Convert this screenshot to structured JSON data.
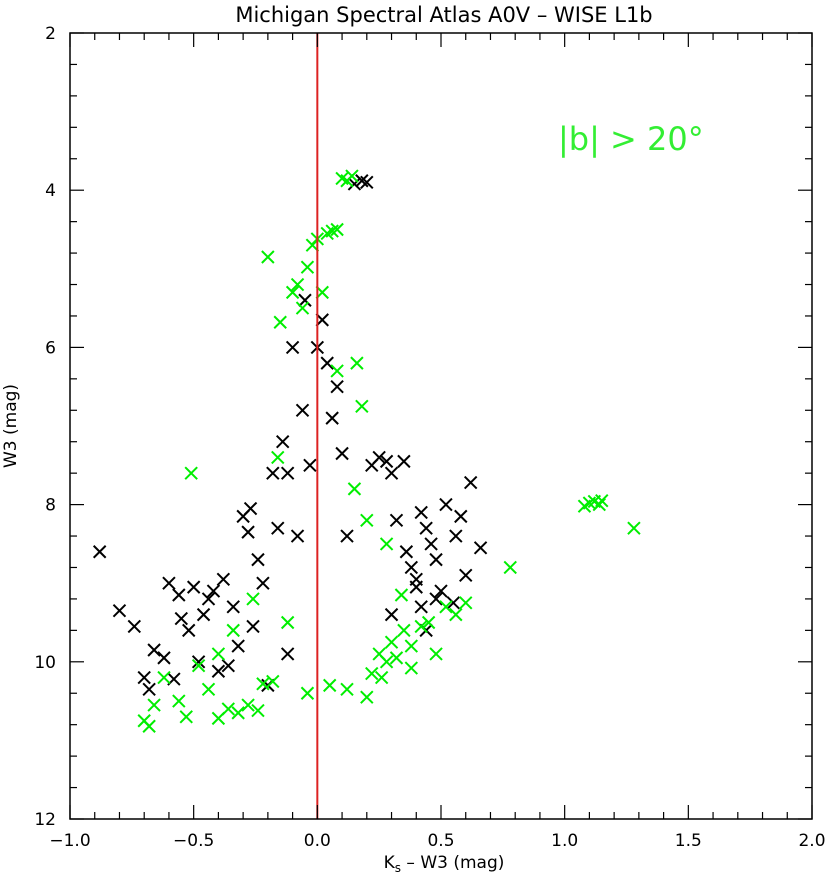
{
  "chart_data": {
    "type": "scatter",
    "title": "Michigan Spectral Atlas A0V – WISE L1b",
    "xlabel_main": "K",
    "xlabel_sub": "s",
    "xlabel_rest": " – W3 (mag)",
    "ylabel": "W3 (mag)",
    "xlim": [
      -1.0,
      2.0
    ],
    "ylim": [
      12,
      2
    ],
    "y_inverted": true,
    "x_ticks": [
      -1.0,
      -0.5,
      0.0,
      0.5,
      1.0,
      1.5,
      2.0
    ],
    "x_tick_labels": [
      "−1.0",
      "−0.5",
      "0.0",
      "0.5",
      "1.0",
      "1.5",
      "2.0"
    ],
    "y_ticks": [
      2,
      4,
      6,
      8,
      10,
      12
    ],
    "y_tick_labels": [
      "2",
      "4",
      "6",
      "8",
      "10",
      "12"
    ],
    "annotation": "|b| > 20°",
    "reference_line": {
      "x": 0.0,
      "color": "#dd2222"
    },
    "marker": "x",
    "series": [
      {
        "color": "#000000",
        "points": [
          [
            -0.88,
            8.6
          ],
          [
            -0.8,
            9.35
          ],
          [
            -0.74,
            9.55
          ],
          [
            -0.7,
            10.2
          ],
          [
            -0.68,
            10.35
          ],
          [
            -0.66,
            9.85
          ],
          [
            -0.62,
            9.95
          ],
          [
            -0.58,
            10.22
          ],
          [
            -0.55,
            9.45
          ],
          [
            -0.52,
            9.6
          ],
          [
            -0.5,
            9.05
          ],
          [
            -0.48,
            10.0
          ],
          [
            -0.44,
            9.2
          ],
          [
            -0.42,
            9.1
          ],
          [
            -0.4,
            10.12
          ],
          [
            -0.38,
            8.95
          ],
          [
            -0.36,
            10.05
          ],
          [
            -0.34,
            9.3
          ],
          [
            -0.3,
            8.15
          ],
          [
            -0.27,
            8.05
          ],
          [
            -0.24,
            8.7
          ],
          [
            -0.22,
            9.0
          ],
          [
            -0.2,
            10.3
          ],
          [
            -0.18,
            7.6
          ],
          [
            -0.16,
            8.3
          ],
          [
            -0.14,
            7.2
          ],
          [
            -0.12,
            7.6
          ],
          [
            -0.1,
            6.0
          ],
          [
            -0.08,
            8.4
          ],
          [
            -0.05,
            5.4
          ],
          [
            -0.03,
            7.5
          ],
          [
            0.0,
            6.0
          ],
          [
            0.02,
            5.65
          ],
          [
            0.04,
            6.2
          ],
          [
            0.06,
            6.9
          ],
          [
            0.08,
            6.5
          ],
          [
            0.1,
            7.35
          ],
          [
            0.12,
            8.4
          ],
          [
            0.15,
            3.92
          ],
          [
            0.18,
            3.88
          ],
          [
            0.2,
            3.9
          ],
          [
            0.22,
            7.5
          ],
          [
            0.25,
            7.4
          ],
          [
            0.28,
            7.45
          ],
          [
            0.3,
            7.6
          ],
          [
            0.32,
            8.2
          ],
          [
            0.35,
            7.45
          ],
          [
            0.38,
            8.8
          ],
          [
            0.4,
            9.05
          ],
          [
            0.42,
            9.3
          ],
          [
            0.44,
            8.3
          ],
          [
            0.46,
            8.5
          ],
          [
            0.48,
            8.7
          ],
          [
            0.5,
            9.1
          ],
          [
            0.52,
            8.0
          ],
          [
            0.55,
            9.25
          ],
          [
            0.58,
            8.15
          ],
          [
            0.6,
            8.9
          ],
          [
            0.62,
            7.72
          ],
          [
            0.66,
            8.55
          ],
          [
            -0.6,
            9.0
          ],
          [
            -0.56,
            9.15
          ],
          [
            -0.46,
            9.4
          ],
          [
            -0.32,
            9.8
          ],
          [
            -0.26,
            9.55
          ],
          [
            0.36,
            8.6
          ],
          [
            0.4,
            8.95
          ],
          [
            0.44,
            9.6
          ],
          [
            0.48,
            9.2
          ],
          [
            0.3,
            9.4
          ],
          [
            0.56,
            8.4
          ],
          [
            0.42,
            8.1
          ],
          [
            -0.12,
            9.9
          ],
          [
            -0.28,
            8.35
          ],
          [
            -0.06,
            6.8
          ]
        ]
      },
      {
        "color": "#00ee00",
        "points": [
          [
            -0.7,
            10.75
          ],
          [
            -0.68,
            10.82
          ],
          [
            -0.66,
            10.55
          ],
          [
            -0.62,
            10.2
          ],
          [
            -0.56,
            10.5
          ],
          [
            -0.53,
            10.7
          ],
          [
            -0.51,
            7.6
          ],
          [
            -0.48,
            10.05
          ],
          [
            -0.44,
            10.35
          ],
          [
            -0.4,
            10.72
          ],
          [
            -0.36,
            10.6
          ],
          [
            -0.32,
            10.65
          ],
          [
            -0.28,
            10.55
          ],
          [
            -0.24,
            10.62
          ],
          [
            -0.2,
            4.85
          ],
          [
            -0.18,
            10.25
          ],
          [
            -0.15,
            5.68
          ],
          [
            -0.12,
            9.5
          ],
          [
            -0.1,
            5.3
          ],
          [
            -0.08,
            5.2
          ],
          [
            -0.06,
            5.5
          ],
          [
            -0.04,
            4.98
          ],
          [
            -0.02,
            4.7
          ],
          [
            0.0,
            4.62
          ],
          [
            0.02,
            5.3
          ],
          [
            0.04,
            4.55
          ],
          [
            0.06,
            4.52
          ],
          [
            0.08,
            4.5
          ],
          [
            0.1,
            3.85
          ],
          [
            0.12,
            3.88
          ],
          [
            0.14,
            3.82
          ],
          [
            0.16,
            6.2
          ],
          [
            0.18,
            6.75
          ],
          [
            0.2,
            10.45
          ],
          [
            0.22,
            10.15
          ],
          [
            0.25,
            9.9
          ],
          [
            0.28,
            10.0
          ],
          [
            0.3,
            9.75
          ],
          [
            0.32,
            9.95
          ],
          [
            0.35,
            9.6
          ],
          [
            0.38,
            9.8
          ],
          [
            0.42,
            9.55
          ],
          [
            0.45,
            9.5
          ],
          [
            0.48,
            9.9
          ],
          [
            0.52,
            9.3
          ],
          [
            0.56,
            9.4
          ],
          [
            0.6,
            9.25
          ],
          [
            0.78,
            8.8
          ],
          [
            1.08,
            8.02
          ],
          [
            1.1,
            7.98
          ],
          [
            1.12,
            7.96
          ],
          [
            1.14,
            8.0
          ],
          [
            1.15,
            7.95
          ],
          [
            1.28,
            8.3
          ],
          [
            0.38,
            10.08
          ],
          [
            0.26,
            10.2
          ],
          [
            0.12,
            10.35
          ],
          [
            -0.04,
            10.4
          ],
          [
            0.05,
            10.3
          ],
          [
            -0.22,
            10.28
          ],
          [
            0.28,
            8.5
          ],
          [
            0.2,
            8.2
          ],
          [
            -0.26,
            9.2
          ],
          [
            -0.34,
            9.6
          ],
          [
            -0.4,
            9.9
          ],
          [
            0.34,
            9.15
          ],
          [
            0.15,
            7.8
          ],
          [
            -0.16,
            7.4
          ],
          [
            0.08,
            6.3
          ]
        ]
      }
    ]
  }
}
